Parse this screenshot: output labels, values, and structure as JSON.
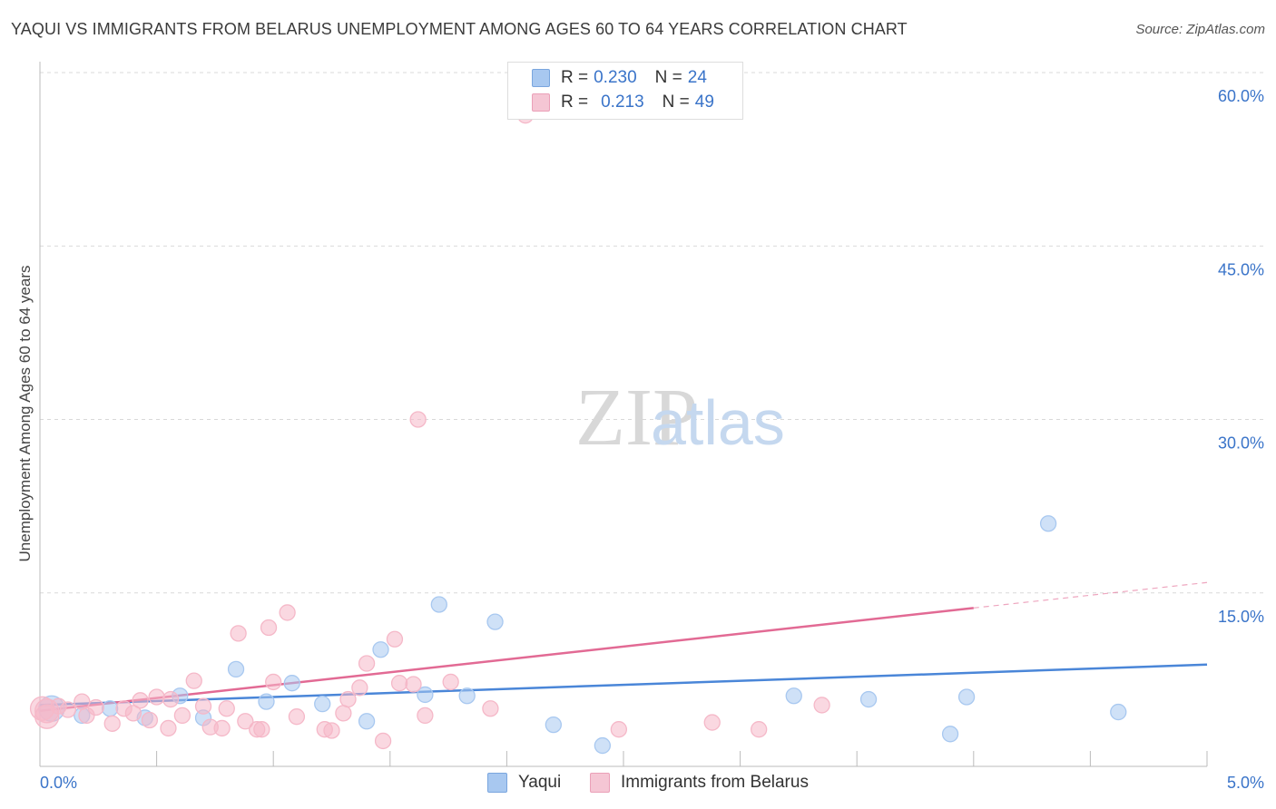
{
  "header": {
    "title": "YAQUI VS IMMIGRANTS FROM BELARUS UNEMPLOYMENT AMONG AGES 60 TO 64 YEARS CORRELATION CHART",
    "source": "Source: ZipAtlas.com"
  },
  "watermark": {
    "zip": "ZIP",
    "atlas": "atlas"
  },
  "legend": {
    "rows": [
      {
        "r_label": "R =",
        "r_value": "0.230",
        "n_label": "N =",
        "n_value": "24",
        "color": "#a8c8f0"
      },
      {
        "r_label": "R =",
        "r_value": "0.213",
        "n_label": "N =",
        "n_value": "49",
        "color": "#f5b8c8"
      }
    ]
  },
  "bottom_legend": {
    "items": [
      {
        "label": "Yaqui",
        "color": "#a8c8f0"
      },
      {
        "label": "Immigrants from Belarus",
        "color": "#f5b8c8"
      }
    ]
  },
  "chart_data": {
    "type": "scatter",
    "title": "YAQUI VS IMMIGRANTS FROM BELARUS UNEMPLOYMENT AMONG AGES 60 TO 64 YEARS CORRELATION CHART",
    "xlabel": "",
    "ylabel": "Unemployment Among Ages 60 to 64 years",
    "xlim": [
      0,
      5
    ],
    "ylim": [
      0,
      60
    ],
    "x_tick_labels": [
      "0.0%",
      "5.0%"
    ],
    "y_tick_values": [
      15,
      30,
      45,
      60
    ],
    "y_tick_labels": [
      "15.0%",
      "30.0%",
      "45.0%",
      "60.0%"
    ],
    "series": [
      {
        "name": "Yaqui",
        "color": "#4a86d8",
        "fill": "#a8c8f0",
        "points": [
          {
            "x": 0.05,
            "y": 5.0
          },
          {
            "x": 0.18,
            "y": 4.4
          },
          {
            "x": 0.3,
            "y": 5.0
          },
          {
            "x": 0.45,
            "y": 4.2
          },
          {
            "x": 0.6,
            "y": 6.1
          },
          {
            "x": 0.7,
            "y": 4.2
          },
          {
            "x": 0.84,
            "y": 8.4
          },
          {
            "x": 0.97,
            "y": 5.6
          },
          {
            "x": 1.08,
            "y": 7.2
          },
          {
            "x": 1.21,
            "y": 5.4
          },
          {
            "x": 1.4,
            "y": 3.9
          },
          {
            "x": 1.46,
            "y": 10.1
          },
          {
            "x": 1.65,
            "y": 6.2
          },
          {
            "x": 1.71,
            "y": 14.0
          },
          {
            "x": 1.83,
            "y": 6.1
          },
          {
            "x": 1.95,
            "y": 12.5
          },
          {
            "x": 2.2,
            "y": 3.6
          },
          {
            "x": 2.41,
            "y": 1.8
          },
          {
            "x": 3.23,
            "y": 6.1
          },
          {
            "x": 3.55,
            "y": 5.8
          },
          {
            "x": 3.9,
            "y": 2.8
          },
          {
            "x": 3.97,
            "y": 6.0
          },
          {
            "x": 4.32,
            "y": 21.0
          },
          {
            "x": 4.62,
            "y": 4.7
          }
        ],
        "trend": {
          "x0": 0.0,
          "y0": 5.3,
          "x1": 5.0,
          "y1": 8.8,
          "dashed_from": null
        }
      },
      {
        "name": "Immigrants from Belarus",
        "color": "#e26a94",
        "fill": "#f5b8c8",
        "points": [
          {
            "x": 0.03,
            "y": 4.8
          },
          {
            "x": 0.08,
            "y": 5.2
          },
          {
            "x": 0.12,
            "y": 4.9
          },
          {
            "x": 0.18,
            "y": 5.6
          },
          {
            "x": 0.2,
            "y": 4.4
          },
          {
            "x": 0.24,
            "y": 5.1
          },
          {
            "x": 0.31,
            "y": 3.7
          },
          {
            "x": 0.36,
            "y": 5.0
          },
          {
            "x": 0.4,
            "y": 4.6
          },
          {
            "x": 0.43,
            "y": 5.7
          },
          {
            "x": 0.47,
            "y": 4.0
          },
          {
            "x": 0.5,
            "y": 6.0
          },
          {
            "x": 0.55,
            "y": 3.3
          },
          {
            "x": 0.56,
            "y": 5.8
          },
          {
            "x": 0.61,
            "y": 4.4
          },
          {
            "x": 0.66,
            "y": 7.4
          },
          {
            "x": 0.7,
            "y": 5.2
          },
          {
            "x": 0.73,
            "y": 3.4
          },
          {
            "x": 0.78,
            "y": 3.3
          },
          {
            "x": 0.8,
            "y": 5.0
          },
          {
            "x": 0.85,
            "y": 11.5
          },
          {
            "x": 0.88,
            "y": 3.9
          },
          {
            "x": 0.93,
            "y": 3.2
          },
          {
            "x": 0.95,
            "y": 3.2
          },
          {
            "x": 0.98,
            "y": 12.0
          },
          {
            "x": 1.0,
            "y": 7.3
          },
          {
            "x": 1.06,
            "y": 13.3
          },
          {
            "x": 1.1,
            "y": 4.3
          },
          {
            "x": 1.22,
            "y": 3.2
          },
          {
            "x": 1.25,
            "y": 3.1
          },
          {
            "x": 1.3,
            "y": 4.6
          },
          {
            "x": 1.32,
            "y": 5.8
          },
          {
            "x": 1.37,
            "y": 6.8
          },
          {
            "x": 1.4,
            "y": 8.9
          },
          {
            "x": 1.47,
            "y": 2.2
          },
          {
            "x": 1.52,
            "y": 11.0
          },
          {
            "x": 1.54,
            "y": 7.2
          },
          {
            "x": 1.6,
            "y": 7.1
          },
          {
            "x": 1.62,
            "y": 30.0
          },
          {
            "x": 1.65,
            "y": 4.4
          },
          {
            "x": 1.76,
            "y": 7.3
          },
          {
            "x": 1.93,
            "y": 5.0
          },
          {
            "x": 2.08,
            "y": 56.3
          },
          {
            "x": 2.48,
            "y": 3.2
          },
          {
            "x": 2.88,
            "y": 3.8
          },
          {
            "x": 3.08,
            "y": 3.2
          },
          {
            "x": 3.35,
            "y": 5.3
          },
          {
            "x": 0.01,
            "y": 5.0
          },
          {
            "x": 0.03,
            "y": 4.3
          }
        ],
        "trend": {
          "x0": 0.0,
          "y0": 4.8,
          "x1": 4.0,
          "y1": 13.7,
          "dashed_from": 4.0,
          "dashed_to_x": 5.0,
          "dashed_to_y": 15.9
        }
      }
    ]
  }
}
